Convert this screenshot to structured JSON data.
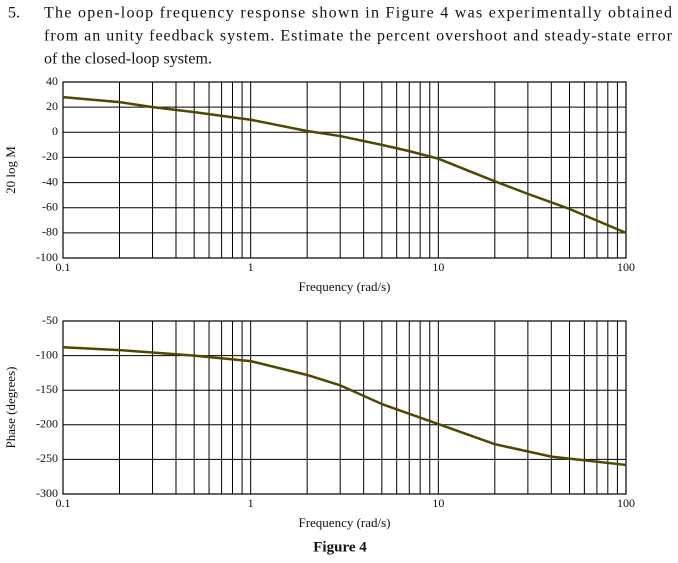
{
  "question": {
    "number": "5.",
    "lines": [
      "The open-loop frequency response shown in Figure 4 was experimentally obtained",
      "from an unity feedback system. Estimate the percent overshoot and steady-state error",
      "of the closed-loop system."
    ]
  },
  "figure_caption": "Figure 4",
  "chart_data": [
    {
      "type": "line",
      "xlabel": "Frequency (rad/s)",
      "ylabel": "20 log M",
      "xscale": "log",
      "grid": true,
      "xlim": [
        0.1,
        100
      ],
      "xticks": [
        0.1,
        1,
        10,
        100
      ],
      "ylim": [
        -100,
        40
      ],
      "yticks": [
        -100,
        -80,
        -60,
        -40,
        -20,
        0,
        20,
        40
      ],
      "x": [
        0.1,
        0.2,
        0.3,
        0.5,
        1,
        2,
        3,
        5,
        7,
        10,
        20,
        30,
        50,
        100
      ],
      "series": [
        {
          "color": "#4d4a00",
          "values": [
            28,
            24,
            20,
            16,
            10,
            1,
            -3,
            -10,
            -15,
            -21,
            -39,
            -49,
            -61,
            -80
          ]
        }
      ]
    },
    {
      "type": "line",
      "xlabel": "Frequency (rad/s)",
      "ylabel": "Phase (degrees)",
      "xscale": "log",
      "grid": true,
      "xlim": [
        0.1,
        100
      ],
      "xticks": [
        0.1,
        1,
        10,
        100
      ],
      "ylim": [
        -300,
        -50
      ],
      "yticks": [
        -300,
        -250,
        -200,
        -150,
        -100,
        -50
      ],
      "x": [
        0.1,
        0.2,
        0.5,
        1,
        2,
        3,
        5,
        10,
        20,
        40,
        100
      ],
      "series": [
        {
          "color": "#4d4a00",
          "values": [
            -88,
            -92,
            -100,
            -108,
            -128,
            -143,
            -170,
            -199,
            -228,
            -246,
            -258
          ]
        }
      ]
    }
  ]
}
